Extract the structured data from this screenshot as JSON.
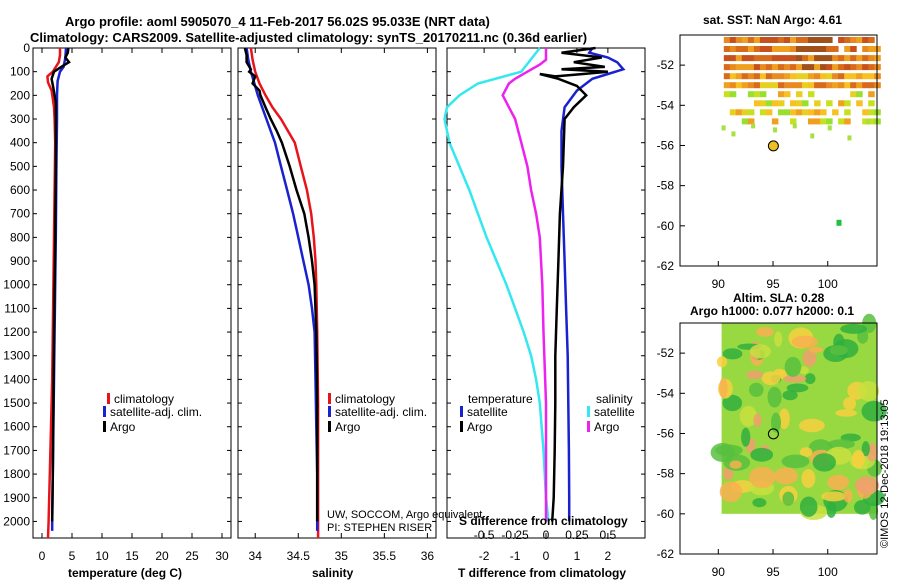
{
  "titles": {
    "line1": "Argo profile: aoml 5905070_4 11-Feb-2017 56.02S 95.033E (NRT data)",
    "line2": "Climatology: CARS2009. Satellite-adjusted climatology: synTS_20170211.nc (0.36d earlier)"
  },
  "footer": {
    "credit1": "UW, SOCCOM, Argo equivalent",
    "credit2": "PI: STEPHEN RISER"
  },
  "watermark": "©IMOS 12-Dec-2018 19:13:05",
  "colors": {
    "climatology": "#e8141c",
    "satellite": "#1a22d0",
    "argo": "#000000",
    "sal_sat": "#33e8ee",
    "sal_argo": "#ee22ee"
  },
  "depth_ticks": [
    0,
    100,
    200,
    300,
    400,
    500,
    600,
    700,
    800,
    900,
    1000,
    1100,
    1200,
    1300,
    1400,
    1500,
    1600,
    1700,
    1800,
    1900,
    2000
  ],
  "chart_data": [
    {
      "type": "line",
      "title": "",
      "xlabel": "temperature (deg C)",
      "ylabel": "depth (dbar)",
      "xlim": [
        -1.5,
        31.5
      ],
      "ylim": [
        2070,
        0
      ],
      "xticks": [
        0,
        5,
        10,
        15,
        20,
        25,
        30
      ],
      "legend": [
        "climatology",
        "satellite-adj. clim.",
        "Argo"
      ],
      "legend_position": "lower-right",
      "series": [
        {
          "name": "climatology",
          "color": "red",
          "points": [
            [
              3.0,
              0
            ],
            [
              3.0,
              30
            ],
            [
              2.8,
              60
            ],
            [
              1.8,
              100
            ],
            [
              0.9,
              120
            ],
            [
              1.0,
              145
            ],
            [
              1.6,
              180
            ],
            [
              2.0,
              250
            ],
            [
              2.1,
              300
            ],
            [
              2.2,
              400
            ],
            [
              2.1,
              600
            ],
            [
              2.0,
              800
            ],
            [
              1.9,
              1000
            ],
            [
              1.8,
              1200
            ],
            [
              1.7,
              1400
            ],
            [
              1.5,
              1600
            ],
            [
              1.3,
              1800
            ],
            [
              1.1,
              2000
            ],
            [
              1.0,
              2070
            ]
          ]
        },
        {
          "name": "satellite-adj. clim.",
          "color": "blue",
          "points": [
            [
              4.0,
              0
            ],
            [
              3.9,
              40
            ],
            [
              3.6,
              80
            ],
            [
              3.0,
              100
            ],
            [
              2.6,
              140
            ],
            [
              2.5,
              200
            ],
            [
              2.5,
              300
            ],
            [
              2.4,
              500
            ],
            [
              2.3,
              800
            ],
            [
              2.2,
              1000
            ],
            [
              2.1,
              1200
            ],
            [
              2.0,
              1400
            ],
            [
              1.9,
              1600
            ],
            [
              1.8,
              1800
            ],
            [
              1.7,
              2000
            ],
            [
              1.7,
              2040
            ]
          ]
        },
        {
          "name": "Argo",
          "color": "black",
          "points": [
            [
              4.4,
              0
            ],
            [
              4.3,
              20
            ],
            [
              3.9,
              40
            ],
            [
              4.5,
              60
            ],
            [
              3.2,
              80
            ],
            [
              2.0,
              100
            ],
            [
              1.6,
              130
            ],
            [
              1.9,
              170
            ],
            [
              2.3,
              230
            ],
            [
              2.3,
              300
            ],
            [
              2.3,
              500
            ],
            [
              2.2,
              800
            ],
            [
              2.1,
              1000
            ],
            [
              2.0,
              1200
            ],
            [
              1.9,
              1500
            ],
            [
              1.8,
              1800
            ],
            [
              1.7,
              2000
            ]
          ]
        }
      ]
    },
    {
      "type": "line",
      "title": "",
      "xlabel": "salinity",
      "ylabel": "depth (dbar)",
      "xlim": [
        33.8,
        36.1
      ],
      "ylim": [
        2070,
        0
      ],
      "xticks": [
        34,
        34.5,
        35,
        35.5,
        36
      ],
      "legend": [
        "climatology",
        "satellite-adj. clim.",
        "Argo"
      ],
      "legend_position": "lower-right",
      "series": [
        {
          "name": "climatology",
          "color": "red",
          "points": [
            [
              33.95,
              0
            ],
            [
              33.97,
              50
            ],
            [
              34.0,
              100
            ],
            [
              34.05,
              150
            ],
            [
              34.12,
              200
            ],
            [
              34.2,
              250
            ],
            [
              34.3,
              300
            ],
            [
              34.38,
              350
            ],
            [
              34.46,
              400
            ],
            [
              34.53,
              500
            ],
            [
              34.6,
              600
            ],
            [
              34.65,
              700
            ],
            [
              34.68,
              800
            ],
            [
              34.7,
              900
            ],
            [
              34.71,
              1000
            ],
            [
              34.72,
              1200
            ],
            [
              34.73,
              1500
            ],
            [
              34.73,
              1800
            ],
            [
              34.73,
              2070
            ]
          ]
        },
        {
          "name": "satellite-adj. clim.",
          "color": "blue",
          "points": [
            [
              33.9,
              0
            ],
            [
              33.92,
              50
            ],
            [
              33.95,
              100
            ],
            [
              33.99,
              150
            ],
            [
              34.03,
              200
            ],
            [
              34.08,
              250
            ],
            [
              34.13,
              300
            ],
            [
              34.18,
              350
            ],
            [
              34.23,
              400
            ],
            [
              34.3,
              500
            ],
            [
              34.37,
              600
            ],
            [
              34.44,
              700
            ],
            [
              34.5,
              800
            ],
            [
              34.56,
              900
            ],
            [
              34.62,
              1000
            ],
            [
              34.66,
              1100
            ],
            [
              34.69,
              1200
            ],
            [
              34.7,
              1400
            ],
            [
              34.71,
              1600
            ],
            [
              34.72,
              1800
            ],
            [
              34.72,
              2000
            ],
            [
              34.72,
              2040
            ]
          ]
        },
        {
          "name": "Argo",
          "color": "black",
          "points": [
            [
              33.88,
              0
            ],
            [
              33.9,
              30
            ],
            [
              33.9,
              60
            ],
            [
              33.95,
              90
            ],
            [
              33.93,
              100
            ],
            [
              34.0,
              120
            ],
            [
              33.97,
              150
            ],
            [
              34.05,
              180
            ],
            [
              34.06,
              200
            ],
            [
              34.12,
              250
            ],
            [
              34.18,
              300
            ],
            [
              34.25,
              350
            ],
            [
              34.31,
              400
            ],
            [
              34.4,
              500
            ],
            [
              34.48,
              600
            ],
            [
              34.57,
              700
            ],
            [
              34.62,
              800
            ],
            [
              34.66,
              900
            ],
            [
              34.69,
              1000
            ],
            [
              34.71,
              1200
            ],
            [
              34.72,
              1500
            ],
            [
              34.72,
              1800
            ],
            [
              34.72,
              2000
            ]
          ]
        }
      ]
    },
    {
      "type": "line",
      "title": "",
      "xlabel": "T difference from climatology",
      "xlabel_top": "S difference from climatology",
      "ylabel": "depth (dbar)",
      "xlim": [
        -3.2,
        3.2
      ],
      "xlim_top": [
        -0.8,
        0.8
      ],
      "ylim": [
        2070,
        0
      ],
      "xticks": [
        -2,
        -1,
        0,
        1,
        2
      ],
      "xticks_top": [
        "-0.5",
        "-0.25",
        "0",
        "0.25",
        "0.5"
      ],
      "legend_left_title": "temperature",
      "legend_right_title": "salinity",
      "legend_left": [
        "satellite",
        "Argo"
      ],
      "legend_right": [
        "satellite",
        "Argo"
      ],
      "series": [
        {
          "name": "T satellite",
          "color": "blue",
          "points": [
            [
              1.5,
              0
            ],
            [
              1.4,
              20
            ],
            [
              1.7,
              30
            ],
            [
              2.0,
              40
            ],
            [
              2.3,
              60
            ],
            [
              2.5,
              90
            ],
            [
              2.0,
              110
            ],
            [
              1.5,
              130
            ],
            [
              1.0,
              180
            ],
            [
              0.6,
              250
            ],
            [
              0.5,
              350
            ],
            [
              0.5,
              500
            ],
            [
              0.55,
              700
            ],
            [
              0.6,
              900
            ],
            [
              0.65,
              1100
            ],
            [
              0.7,
              1300
            ],
            [
              0.72,
              1500
            ],
            [
              0.74,
              1700
            ],
            [
              0.75,
              1900
            ],
            [
              0.75,
              2000
            ]
          ]
        },
        {
          "name": "T Argo",
          "color": "black",
          "points": [
            [
              1.6,
              0
            ],
            [
              0.5,
              20
            ],
            [
              1.8,
              40
            ],
            [
              0.9,
              60
            ],
            [
              1.9,
              80
            ],
            [
              0.5,
              90
            ],
            [
              2.0,
              100
            ],
            [
              1.2,
              110
            ],
            [
              0.3,
              120
            ],
            [
              -0.2,
              110
            ],
            [
              0.4,
              130
            ],
            [
              1.0,
              160
            ],
            [
              1.3,
              200
            ],
            [
              0.9,
              250
            ],
            [
              0.6,
              300
            ],
            [
              0.55,
              500
            ],
            [
              0.45,
              700
            ],
            [
              0.4,
              900
            ],
            [
              0.35,
              1100
            ],
            [
              0.3,
              1300
            ],
            [
              0.3,
              1500
            ],
            [
              0.28,
              1700
            ],
            [
              0.25,
              1900
            ],
            [
              0.2,
              2000
            ]
          ]
        },
        {
          "name": "S satellite",
          "color": "cyan",
          "points": [
            [
              -0.05,
              0
            ],
            [
              -0.2,
              100
            ],
            [
              -0.55,
              150
            ],
            [
              -0.7,
              200
            ],
            [
              -0.8,
              250
            ],
            [
              -0.82,
              300
            ],
            [
              -0.78,
              400
            ],
            [
              -0.7,
              500
            ],
            [
              -0.62,
              600
            ],
            [
              -0.55,
              700
            ],
            [
              -0.48,
              800
            ],
            [
              -0.4,
              900
            ],
            [
              -0.32,
              1000
            ],
            [
              -0.25,
              1100
            ],
            [
              -0.18,
              1200
            ],
            [
              -0.12,
              1300
            ],
            [
              -0.08,
              1400
            ],
            [
              -0.05,
              1500
            ],
            [
              -0.02,
              1700
            ],
            [
              0.0,
              1900
            ],
            [
              0.02,
              2000
            ]
          ]
        },
        {
          "name": "S Argo",
          "color": "magenta",
          "points": [
            [
              0.0,
              0
            ],
            [
              0.0,
              50
            ],
            [
              -0.05,
              70
            ],
            [
              -0.15,
              100
            ],
            [
              -0.25,
              130
            ],
            [
              -0.3,
              150
            ],
            [
              -0.35,
              200
            ],
            [
              -0.3,
              250
            ],
            [
              -0.25,
              300
            ],
            [
              -0.2,
              400
            ],
            [
              -0.15,
              500
            ],
            [
              -0.12,
              600
            ],
            [
              -0.08,
              700
            ],
            [
              -0.05,
              800
            ],
            [
              -0.03,
              1000
            ],
            [
              -0.02,
              1200
            ],
            [
              0.0,
              1500
            ],
            [
              0.0,
              1800
            ],
            [
              0.0,
              2000
            ]
          ]
        }
      ]
    },
    {
      "type": "heatmap",
      "title": "sat. SST: NaN Argo: 4.61",
      "xlabel": "",
      "ylabel": "",
      "xlim": [
        86.5,
        104.5
      ],
      "ylim": [
        -62,
        -50.5
      ],
      "xticks": [
        90,
        95,
        100
      ],
      "yticks": [
        -52,
        -54,
        -56,
        -58,
        -60,
        -62
      ],
      "marker": {
        "lon": 95.033,
        "lat": -56.02
      }
    },
    {
      "type": "heatmap",
      "title": "Altim. SLA: 0.28",
      "subtitle": "Argo h1000: 0.077 h2000: 0.1",
      "xlabel": "",
      "ylabel": "",
      "xlim": [
        86.5,
        104.5
      ],
      "ylim": [
        -62,
        -50.5
      ],
      "xticks": [
        90,
        95,
        100
      ],
      "yticks": [
        -52,
        -54,
        -56,
        -58,
        -60,
        -62
      ],
      "marker": {
        "lon": 95.033,
        "lat": -56.02
      }
    }
  ]
}
